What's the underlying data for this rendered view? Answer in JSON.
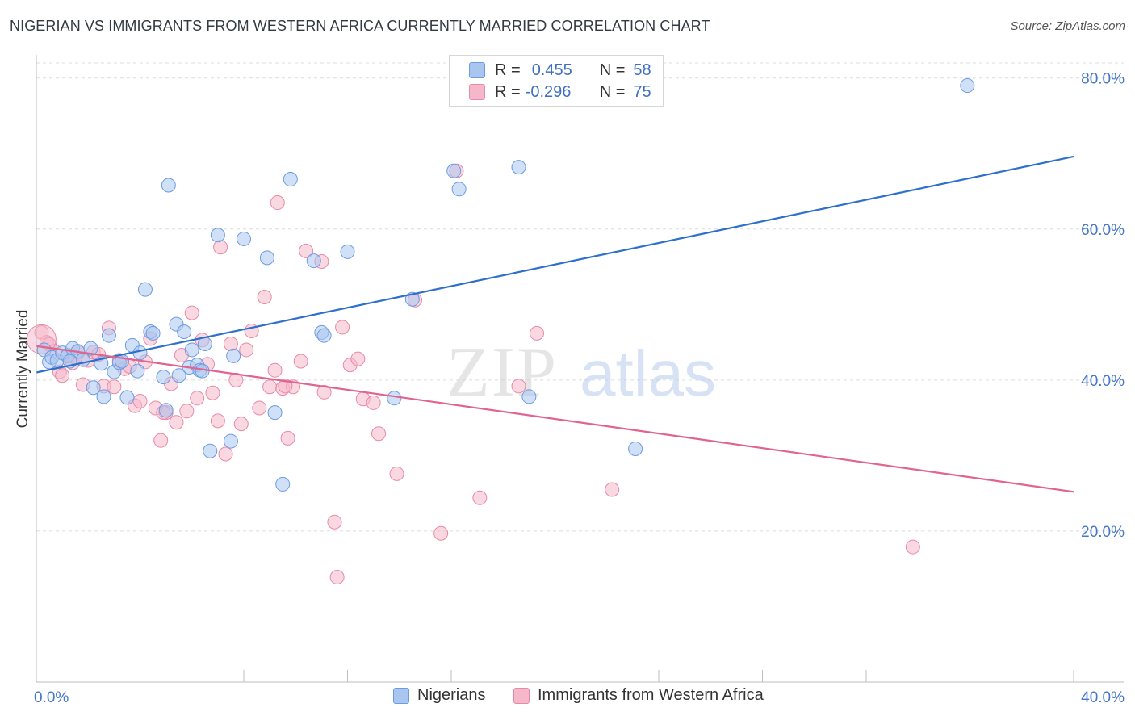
{
  "title": "NIGERIAN VS IMMIGRANTS FROM WESTERN AFRICA CURRENTLY MARRIED CORRELATION CHART",
  "source": "Source: ZipAtlas.com",
  "watermark": {
    "zip": "ZIP",
    "atlas": "atlas"
  },
  "legend": {
    "rows": [
      {
        "r_label": "R =",
        "r_value": "0.455",
        "n_label": "N =",
        "n_value": "58"
      },
      {
        "r_label": "R =",
        "r_value": "-0.296",
        "n_label": "N =",
        "n_value": "75"
      }
    ]
  },
  "bottom_legend": {
    "series1": "Nigerians",
    "series2": "Immigrants from Western Africa"
  },
  "colors": {
    "blue_fill": "#a9c6f0",
    "blue_stroke": "#6d9be0",
    "blue_line": "#2f6fcc",
    "pink_fill": "#f5b8cb",
    "pink_stroke": "#e68aa8",
    "pink_line": "#e0648f",
    "grid": "#dcdcdc",
    "tick_text": "#4577c9"
  },
  "chart_data": {
    "type": "scatter",
    "title": "NIGERIAN VS IMMIGRANTS FROM WESTERN AFRICA CURRENTLY MARRIED CORRELATION CHART",
    "xlabel": "",
    "ylabel": "Currently Married",
    "xlim": [
      0,
      40
    ],
    "ylim": [
      0,
      82
    ],
    "x_tick_labels": [
      "0.0%",
      "40.0%"
    ],
    "y_ticks": [
      20,
      40,
      60,
      80
    ],
    "y_tick_labels": [
      "20.0%",
      "40.0%",
      "60.0%",
      "80.0%"
    ],
    "grid": true,
    "legend_position": "top-center",
    "series": [
      {
        "name": "Nigerians",
        "color": "#a9c6f0",
        "r": 0.455,
        "n": 58,
        "trend": {
          "x": [
            0,
            40
          ],
          "y": [
            41.0,
            69.6
          ]
        },
        "points": [
          [
            0.3,
            44.0
          ],
          [
            0.5,
            42.4
          ],
          [
            0.6,
            43.0
          ],
          [
            0.8,
            42.6
          ],
          [
            1.0,
            43.6
          ],
          [
            1.2,
            43.2
          ],
          [
            1.4,
            44.2
          ],
          [
            1.6,
            43.8
          ],
          [
            1.8,
            42.7
          ],
          [
            2.1,
            44.2
          ],
          [
            2.2,
            39.0
          ],
          [
            2.5,
            42.2
          ],
          [
            2.6,
            37.8
          ],
          [
            2.8,
            45.9
          ],
          [
            3.0,
            41.1
          ],
          [
            3.2,
            42.3
          ],
          [
            3.5,
            37.7
          ],
          [
            3.7,
            44.6
          ],
          [
            3.9,
            41.2
          ],
          [
            4.0,
            43.6
          ],
          [
            4.2,
            52.0
          ],
          [
            4.4,
            46.4
          ],
          [
            4.5,
            46.2
          ],
          [
            4.9,
            40.4
          ],
          [
            5.0,
            36.0
          ],
          [
            5.1,
            65.8
          ],
          [
            5.4,
            47.4
          ],
          [
            5.5,
            40.6
          ],
          [
            5.7,
            46.4
          ],
          [
            5.9,
            41.7
          ],
          [
            6.0,
            44.0
          ],
          [
            6.2,
            42.0
          ],
          [
            6.3,
            41.3
          ],
          [
            6.5,
            44.8
          ],
          [
            6.7,
            30.6
          ],
          [
            7.0,
            59.2
          ],
          [
            7.5,
            31.9
          ],
          [
            7.6,
            43.2
          ],
          [
            8.0,
            58.7
          ],
          [
            8.9,
            56.2
          ],
          [
            9.2,
            35.7
          ],
          [
            9.5,
            26.2
          ],
          [
            9.8,
            66.6
          ],
          [
            10.7,
            55.8
          ],
          [
            11.0,
            46.3
          ],
          [
            11.1,
            45.9
          ],
          [
            12.0,
            57.0
          ],
          [
            13.8,
            37.6
          ],
          [
            14.5,
            50.7
          ],
          [
            16.1,
            67.7
          ],
          [
            16.3,
            65.3
          ],
          [
            18.6,
            68.2
          ],
          [
            19.0,
            37.8
          ],
          [
            23.1,
            30.9
          ],
          [
            35.9,
            79.0
          ],
          [
            3.3,
            42.5
          ],
          [
            1.3,
            42.5
          ],
          [
            6.4,
            41.2
          ]
        ]
      },
      {
        "name": "Immigrants from Western Africa",
        "color": "#f5b8cb",
        "r": -0.296,
        "n": 75,
        "trend": {
          "x": [
            0,
            40
          ],
          "y": [
            44.5,
            25.2
          ]
        },
        "points": [
          [
            0.2,
            46.3
          ],
          [
            0.4,
            45.0
          ],
          [
            0.5,
            44.7
          ],
          [
            0.7,
            43.8
          ],
          [
            0.9,
            41.1
          ],
          [
            1.0,
            40.6
          ],
          [
            1.2,
            43.3
          ],
          [
            1.4,
            42.3
          ],
          [
            1.6,
            43.7
          ],
          [
            1.8,
            39.4
          ],
          [
            2.0,
            42.6
          ],
          [
            2.2,
            43.7
          ],
          [
            2.4,
            43.4
          ],
          [
            2.6,
            39.2
          ],
          [
            2.8,
            46.9
          ],
          [
            3.0,
            39.1
          ],
          [
            3.2,
            42.6
          ],
          [
            3.4,
            41.5
          ],
          [
            3.6,
            41.8
          ],
          [
            3.8,
            36.6
          ],
          [
            4.0,
            37.2
          ],
          [
            4.2,
            42.4
          ],
          [
            4.4,
            45.5
          ],
          [
            4.6,
            36.3
          ],
          [
            4.8,
            32.0
          ],
          [
            5.0,
            35.7
          ],
          [
            5.2,
            39.5
          ],
          [
            5.4,
            34.4
          ],
          [
            5.6,
            43.3
          ],
          [
            5.8,
            35.9
          ],
          [
            6.0,
            48.9
          ],
          [
            6.2,
            37.6
          ],
          [
            6.4,
            45.3
          ],
          [
            6.6,
            42.1
          ],
          [
            6.8,
            38.3
          ],
          [
            7.0,
            34.6
          ],
          [
            7.1,
            57.6
          ],
          [
            7.3,
            30.2
          ],
          [
            7.5,
            44.8
          ],
          [
            7.7,
            40.0
          ],
          [
            7.9,
            34.2
          ],
          [
            8.1,
            44.0
          ],
          [
            8.3,
            46.5
          ],
          [
            8.6,
            36.3
          ],
          [
            8.8,
            51.0
          ],
          [
            9.0,
            39.1
          ],
          [
            9.2,
            41.3
          ],
          [
            9.3,
            63.5
          ],
          [
            9.5,
            38.9
          ],
          [
            9.7,
            32.3
          ],
          [
            9.9,
            39.1
          ],
          [
            10.2,
            42.5
          ],
          [
            10.4,
            57.1
          ],
          [
            11.0,
            55.7
          ],
          [
            11.1,
            38.4
          ],
          [
            11.5,
            21.2
          ],
          [
            11.6,
            13.9
          ],
          [
            11.8,
            47.0
          ],
          [
            12.1,
            42.0
          ],
          [
            12.4,
            42.8
          ],
          [
            12.6,
            37.5
          ],
          [
            13.0,
            37.0
          ],
          [
            13.2,
            32.9
          ],
          [
            13.9,
            27.6
          ],
          [
            14.6,
            50.6
          ],
          [
            15.6,
            19.7
          ],
          [
            16.2,
            67.7
          ],
          [
            17.1,
            24.4
          ],
          [
            18.6,
            39.2
          ],
          [
            19.3,
            46.2
          ],
          [
            22.2,
            25.5
          ],
          [
            33.8,
            17.9
          ],
          [
            1.5,
            43.0
          ],
          [
            4.9,
            35.7
          ],
          [
            9.6,
            39.2
          ]
        ]
      }
    ]
  }
}
